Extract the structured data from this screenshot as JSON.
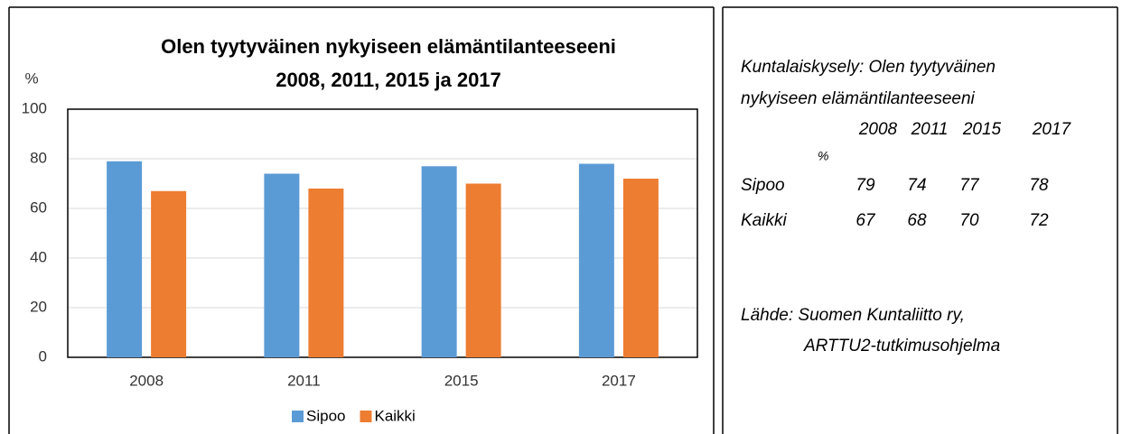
{
  "chart_data": {
    "type": "bar",
    "title": [
      "Olen tyytyväinen nykyiseen elämäntilanteeseeni",
      "2008, 2011, 2015 ja 2017"
    ],
    "ylabel": "%",
    "categories": [
      "2008",
      "2011",
      "2015",
      "2017"
    ],
    "series": [
      {
        "name": "Sipoo",
        "color": "#5b9bd5",
        "values": [
          79,
          74,
          77,
          78
        ]
      },
      {
        "name": "Kaikki",
        "color": "#ed7d31",
        "values": [
          67,
          68,
          70,
          72
        ]
      }
    ],
    "ylim": [
      0,
      100
    ],
    "yticks": [
      0,
      20,
      40,
      60,
      80,
      100
    ],
    "grid": true,
    "legend": "bottom"
  },
  "side": {
    "heading": [
      "Kuntalaiskysely: Olen tyytyväinen",
      "nykyiseen elämäntilanteeseeni"
    ],
    "unit": "%",
    "source": [
      "Lähde: Suomen Kuntaliitto ry,",
      "ARTTU2-tutkimusohjelma"
    ]
  }
}
